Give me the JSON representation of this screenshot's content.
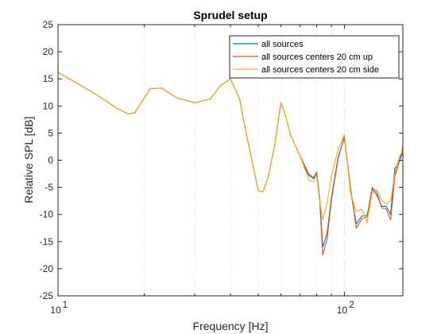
{
  "chart_data": {
    "type": "line",
    "title": "Sprudel setup",
    "xlabel": "Frequency [Hz]",
    "ylabel": "Relative SPL [dB]",
    "xscale": "log",
    "xlim": [
      10,
      160
    ],
    "ylim": [
      -25,
      25
    ],
    "yticks": [
      -25,
      -20,
      -15,
      -10,
      -5,
      0,
      5,
      10,
      15,
      20,
      25
    ],
    "ytick_labels": [
      "-25",
      "-20",
      "-15",
      "-10",
      "-5",
      "0",
      "5",
      "10",
      "15",
      "20",
      "25"
    ],
    "xticks": [
      10,
      100
    ],
    "xtick_labels": [
      {
        "base": "10",
        "exp": "1"
      },
      {
        "base": "10",
        "exp": "2"
      }
    ],
    "grid": {
      "x_major": true,
      "x_minor": true,
      "y_major": false,
      "style": "dotted"
    },
    "legend": {
      "position": "top-right",
      "entries": [
        "all sources",
        "all sources centers 20 cm up",
        "all sources centers 20 cm side"
      ]
    },
    "series": [
      {
        "name": "all sources",
        "color": "#0072BD",
        "x": [
          10,
          12,
          14,
          16,
          17.5,
          18.5,
          20,
          21,
          23,
          26,
          30,
          34,
          37,
          40,
          43,
          46,
          50,
          52,
          54,
          57,
          60,
          62,
          65,
          70,
          75,
          78,
          80,
          82,
          84,
          87,
          90,
          95,
          100,
          105,
          110,
          115,
          120,
          125,
          130,
          135,
          140,
          145,
          150,
          155,
          160
        ],
        "y": [
          16.2,
          13.8,
          11.7,
          9.6,
          8.6,
          8.7,
          11.5,
          13.2,
          13.3,
          11.5,
          10.6,
          11.3,
          13.8,
          15,
          11.4,
          3.5,
          -5.6,
          -5.8,
          -3.4,
          2.5,
          10.6,
          8.6,
          4.5,
          0.8,
          -2.8,
          -3.4,
          -2.4,
          -7,
          -16,
          -13.5,
          -7,
          0.5,
          4.2,
          -5.5,
          -11.7,
          -10.3,
          -10.2,
          -5.3,
          -6.5,
          -8.5,
          -8.5,
          -10,
          -1.5,
          -0.4,
          1.5
        ]
      },
      {
        "name": "all sources centers 20 cm up",
        "color": "#D95319",
        "x": [
          10,
          12,
          14,
          16,
          17.5,
          18.5,
          20,
          21,
          23,
          26,
          30,
          34,
          37,
          40,
          43,
          46,
          50,
          52,
          54,
          57,
          60,
          62,
          65,
          70,
          75,
          78,
          80,
          82,
          84,
          87,
          90,
          95,
          100,
          105,
          110,
          115,
          120,
          125,
          130,
          135,
          140,
          145,
          150,
          155,
          160
        ],
        "y": [
          16.2,
          13.8,
          11.7,
          9.6,
          8.6,
          8.7,
          11.5,
          13.2,
          13.3,
          11.5,
          10.6,
          11.3,
          13.8,
          15,
          11.4,
          3.5,
          -5.6,
          -5.8,
          -3.4,
          2.5,
          10.6,
          8.6,
          4.5,
          0.8,
          -2.5,
          -3.2,
          -2.2,
          -7.5,
          -17.5,
          -14.5,
          -7.5,
          0.2,
          4.5,
          -5,
          -12.5,
          -10.8,
          -10.5,
          -5,
          -6,
          -8.8,
          -9,
          -11,
          -3,
          -0.5,
          2.5
        ]
      },
      {
        "name": "all sources centers 20 cm side",
        "color": "#EDB120",
        "x": [
          10,
          12,
          14,
          16,
          17.5,
          18.5,
          20,
          21,
          23,
          26,
          30,
          34,
          37,
          40,
          43,
          46,
          50,
          52,
          54,
          57,
          60,
          62,
          65,
          70,
          75,
          78,
          80,
          82,
          84,
          87,
          90,
          95,
          100,
          105,
          110,
          115,
          120,
          125,
          130,
          135,
          140,
          145,
          150,
          155,
          160
        ],
        "y": [
          16.2,
          13.8,
          11.7,
          9.6,
          8.6,
          8.7,
          11.5,
          13.2,
          13.3,
          11.5,
          10.6,
          11.3,
          13.8,
          15,
          11.4,
          3.5,
          -5.6,
          -5.8,
          -3.4,
          2.5,
          10.6,
          8.6,
          4.5,
          0.8,
          -3.6,
          -4,
          -3,
          -7.5,
          -11,
          -8,
          -3,
          2,
          4.8,
          -6,
          -9.5,
          -9,
          -11.5,
          -6,
          -5.5,
          -7.5,
          -8,
          -7.5,
          -2.5,
          0.5,
          2
        ]
      }
    ]
  }
}
